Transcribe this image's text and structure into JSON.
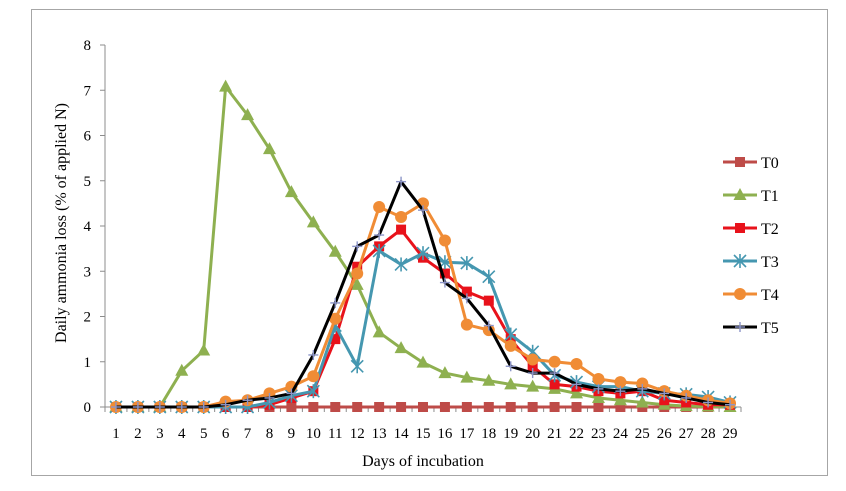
{
  "chart_data": {
    "type": "line",
    "title": "",
    "xlabel": "Days of incubation",
    "ylabel": "Daily ammonia loss (% of applied N)",
    "ylim": [
      0,
      8
    ],
    "yticks": [
      "0",
      "1",
      "2",
      "3",
      "4",
      "5",
      "6",
      "7",
      "8"
    ],
    "x": [
      1,
      2,
      3,
      4,
      5,
      6,
      7,
      8,
      9,
      10,
      11,
      12,
      13,
      14,
      15,
      16,
      17,
      18,
      19,
      20,
      21,
      22,
      23,
      24,
      25,
      26,
      27,
      28,
      29
    ],
    "grid": false,
    "legend_position": "right",
    "series": [
      {
        "name": "T0",
        "color": "#be4b48",
        "marker": "square",
        "values": [
          0,
          0,
          0,
          0,
          0,
          0,
          0,
          0,
          0,
          0,
          0,
          0,
          0,
          0,
          0,
          0,
          0,
          0,
          0,
          0,
          0,
          0,
          0,
          0,
          0,
          0,
          0,
          0,
          0
        ]
      },
      {
        "name": "T1",
        "color": "#8eb050",
        "marker": "triangle",
        "values": [
          0,
          0,
          0,
          0.8,
          1.25,
          7.08,
          6.45,
          5.7,
          4.75,
          4.08,
          3.43,
          2.7,
          1.65,
          1.3,
          0.98,
          0.75,
          0.65,
          0.58,
          0.5,
          0.45,
          0.4,
          0.3,
          0.2,
          0.15,
          0.1,
          0.05,
          0.02,
          0.01,
          0
        ]
      },
      {
        "name": "T2",
        "color": "#e8121b",
        "marker": "square",
        "values": [
          0,
          0,
          0,
          0,
          0,
          0,
          0,
          0.05,
          0.2,
          0.35,
          1.5,
          3.1,
          3.55,
          3.92,
          3.3,
          2.95,
          2.55,
          2.35,
          1.5,
          0.9,
          0.5,
          0.45,
          0.35,
          0.3,
          0.35,
          0.15,
          0.1,
          0.05,
          0.05
        ]
      },
      {
        "name": "T3",
        "color": "#4597b0",
        "marker": "asterisk",
        "values": [
          0,
          0,
          0,
          0,
          0,
          0,
          0,
          0.1,
          0.25,
          0.35,
          1.8,
          0.9,
          3.45,
          3.15,
          3.4,
          3.2,
          3.18,
          2.88,
          1.6,
          1.22,
          0.7,
          0.55,
          0.45,
          0.45,
          0.35,
          0.3,
          0.28,
          0.22,
          0.1
        ]
      },
      {
        "name": "T4",
        "color": "#f08c35",
        "marker": "circle",
        "values": [
          0,
          0,
          0,
          0,
          0,
          0.12,
          0.15,
          0.3,
          0.45,
          0.68,
          1.95,
          2.95,
          4.42,
          4.2,
          4.5,
          3.68,
          1.82,
          1.7,
          1.35,
          1.05,
          1,
          0.95,
          0.62,
          0.55,
          0.52,
          0.35,
          0.25,
          0.15,
          0.08
        ]
      },
      {
        "name": "T5",
        "color": "#000000",
        "marker": "plus",
        "values": [
          0,
          0,
          0,
          0,
          0,
          0.05,
          0.15,
          0.2,
          0.3,
          1.15,
          2.3,
          3.55,
          3.8,
          4.98,
          4.35,
          2.75,
          2.4,
          1.8,
          0.9,
          0.75,
          0.75,
          0.5,
          0.4,
          0.35,
          0.4,
          0.3,
          0.2,
          0.1,
          0.05
        ]
      }
    ]
  }
}
